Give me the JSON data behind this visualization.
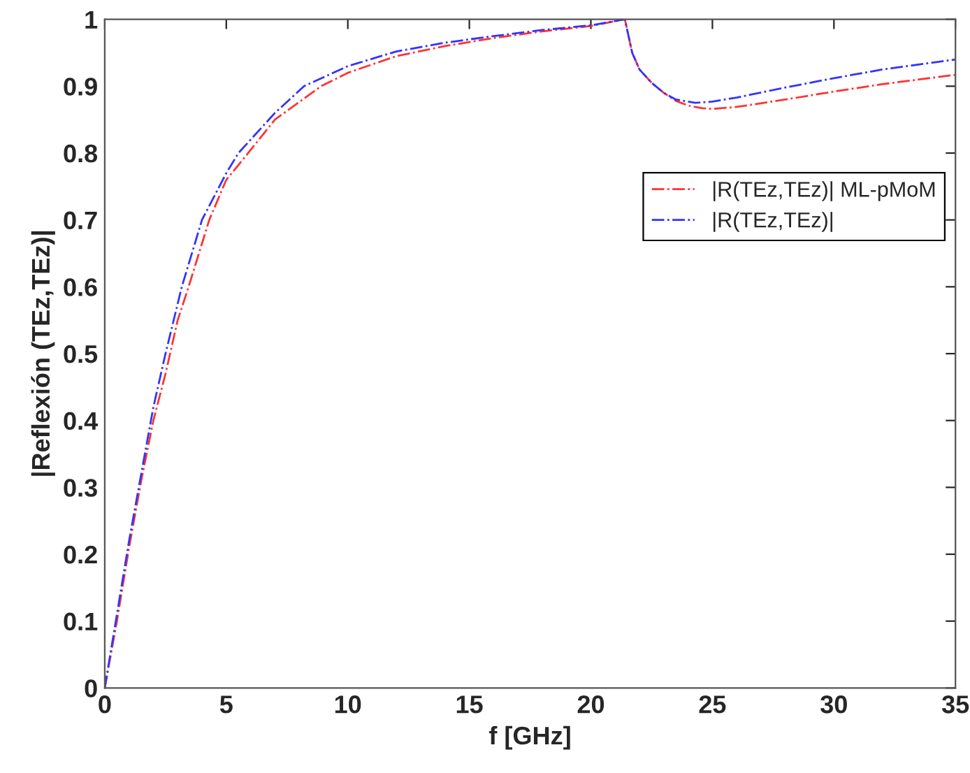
{
  "chart_data": {
    "type": "line",
    "xlabel": "f [GHz]",
    "ylabel": "|Reflexión (TEz,TEz)|",
    "xlim": [
      0,
      35
    ],
    "ylim": [
      0,
      1
    ],
    "xticks": [
      0,
      5,
      10,
      15,
      20,
      25,
      30,
      35
    ],
    "yticks": [
      0,
      0.1,
      0.2,
      0.3,
      0.4,
      0.5,
      0.6,
      0.7,
      0.8,
      0.9,
      1
    ],
    "grid": false,
    "legend": "right",
    "line_style": "dashdot",
    "marker": "none",
    "series": [
      {
        "name": "|R(TEz,TEz)| ML-pMoM",
        "color": "#ff3333",
        "x": [
          0,
          0.5,
          1,
          1.5,
          2,
          2.5,
          3,
          3.45,
          4.3,
          5,
          5.9,
          7,
          8.9,
          10,
          12,
          14,
          16,
          18,
          20,
          21.4,
          21.7,
          22,
          22.5,
          23,
          23.5,
          24,
          24.6,
          25,
          26,
          28,
          30,
          32,
          35
        ],
        "values": [
          0,
          0.1,
          0.21,
          0.31,
          0.4,
          0.47,
          0.55,
          0.6,
          0.7,
          0.76,
          0.8,
          0.85,
          0.9,
          0.92,
          0.945,
          0.96,
          0.972,
          0.982,
          0.99,
          1.0,
          0.95,
          0.925,
          0.905,
          0.89,
          0.878,
          0.871,
          0.867,
          0.866,
          0.869,
          0.88,
          0.892,
          0.903,
          0.917
        ]
      },
      {
        "name": "|R(TEz,TEz)|",
        "color": "#3333ff",
        "x": [
          0,
          0.5,
          1,
          1.5,
          2,
          2.5,
          3.17,
          4,
          5,
          5.5,
          7,
          8.2,
          10,
          12,
          14,
          16,
          18,
          20,
          21.4,
          21.7,
          22,
          22.5,
          23,
          23.5,
          24.3,
          25,
          26,
          28,
          30,
          32,
          35
        ],
        "values": [
          0,
          0.11,
          0.22,
          0.32,
          0.42,
          0.5,
          0.6,
          0.7,
          0.77,
          0.8,
          0.86,
          0.9,
          0.93,
          0.952,
          0.965,
          0.975,
          0.984,
          0.991,
          1.0,
          0.95,
          0.925,
          0.905,
          0.89,
          0.88,
          0.875,
          0.877,
          0.883,
          0.898,
          0.912,
          0.925,
          0.94
        ]
      }
    ]
  }
}
